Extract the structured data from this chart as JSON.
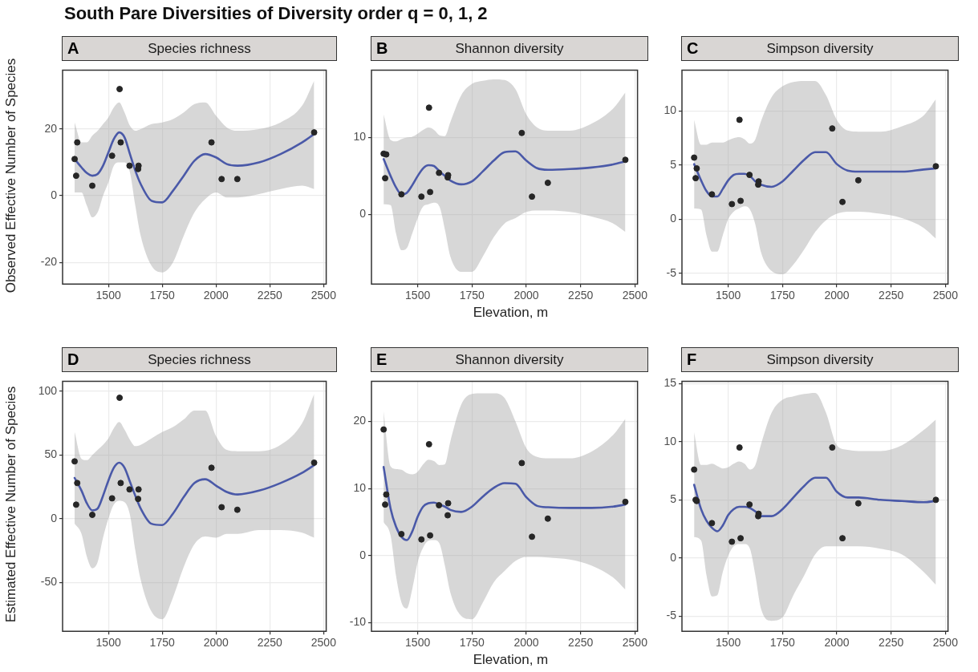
{
  "chart_data": [
    {
      "type": "scatter",
      "title": "Species richness",
      "subtitle": "A",
      "ylabel": "Observed Effective Number of Species",
      "annotations": [
        "South Pare Diversities of Diversity order q = 0, 1, 2"
      ],
      "xlim": [
        1287,
        2512
      ],
      "xticks": [
        1500,
        1750,
        2000,
        2250,
        2500
      ],
      "ylim": [
        -26.5,
        37.7
      ],
      "yticks": [
        -20,
        0,
        20
      ],
      "grid": true,
      "x": [
        1343,
        1350,
        1355,
        1425,
        1517,
        1552,
        1557,
        1598,
        1638,
        1640,
        1979,
        2026,
        2099,
        2456
      ],
      "series": [
        {
          "type": "scatter",
          "marker": "circle",
          "color": "#262626",
          "values": [
            11,
            6,
            16,
            3,
            12,
            32,
            16,
            9,
            8,
            9,
            16,
            5,
            5,
            19
          ]
        },
        {
          "type": "line",
          "marker": "none",
          "color": "#4a59a8",
          "x": [
            1343,
            1375,
            1400,
            1425,
            1450,
            1475,
            1500,
            1525,
            1550,
            1575,
            1600,
            1625,
            1650,
            1700,
            1750,
            1800,
            1850,
            1900,
            1950,
            2000,
            2050,
            2100,
            2200,
            2300,
            2400,
            2456
          ],
          "values": [
            11,
            8.5,
            6.8,
            6,
            6.5,
            9,
            13,
            17,
            19,
            17.5,
            12.5,
            7.5,
            3.5,
            -1.5,
            -2,
            1.5,
            6,
            10.5,
            12.5,
            11.5,
            9.5,
            9,
            10,
            12.5,
            16,
            18.5
          ],
          "upper": [
            22,
            16,
            16,
            18,
            19.5,
            21.5,
            23.5,
            26.5,
            28,
            25,
            21,
            19.5,
            20,
            21.5,
            22,
            23,
            25,
            27.5,
            28,
            24,
            20.5,
            19.5,
            20,
            22,
            27,
            34.5
          ],
          "lower": [
            1,
            1,
            -3,
            -6.5,
            -5,
            0,
            4,
            9,
            10,
            10,
            7,
            -3,
            -12,
            -21,
            -23,
            -20,
            -12,
            -5,
            -1,
            1,
            -0.5,
            -0.5,
            0.5,
            2,
            3,
            2
          ]
        }
      ]
    },
    {
      "type": "scatter",
      "title": "Shannon diversity",
      "subtitle": "B",
      "xlabel": "Elevation, m",
      "xlim": [
        1287,
        2512
      ],
      "xticks": [
        1500,
        1750,
        2000,
        2250,
        2500
      ],
      "ylim": [
        -9.1,
        18.8
      ],
      "yticks": [
        0,
        10
      ],
      "grid": true,
      "x": [
        1343,
        1350,
        1355,
        1425,
        1517,
        1552,
        1557,
        1598,
        1638,
        1640,
        1979,
        2026,
        2099,
        2456
      ],
      "series": [
        {
          "type": "scatter",
          "marker": "circle",
          "color": "#262626",
          "values": [
            7.9,
            4.7,
            7.8,
            2.6,
            2.3,
            13.9,
            2.9,
            5.4,
            4.8,
            5.1,
            10.6,
            2.3,
            4.1,
            7.1
          ]
        },
        {
          "type": "line",
          "marker": "none",
          "color": "#4a59a8",
          "x": [
            1343,
            1375,
            1400,
            1425,
            1450,
            1475,
            1500,
            1525,
            1550,
            1575,
            1600,
            1625,
            1650,
            1700,
            1750,
            1800,
            1850,
            1900,
            1950,
            2000,
            2050,
            2100,
            2200,
            2300,
            2400,
            2456
          ],
          "values": [
            7.2,
            5,
            3.5,
            2.6,
            2.8,
            3.8,
            5,
            6,
            6.4,
            6.3,
            5.6,
            5,
            4.4,
            3.9,
            4.3,
            5.6,
            7,
            8.1,
            8.2,
            7,
            6,
            5.8,
            5.9,
            6.1,
            6.5,
            6.9
          ],
          "upper": [
            13,
            9.7,
            9.5,
            9.8,
            10,
            10.1,
            10.5,
            11,
            11.3,
            11,
            10.3,
            10.2,
            12,
            15.5,
            17,
            17.4,
            17.6,
            17.5,
            16.3,
            13,
            11.3,
            10.9,
            10.9,
            11.8,
            13.8,
            15.9
          ],
          "lower": [
            1.3,
            1.2,
            -2.5,
            -4.7,
            -4.4,
            -2.5,
            -0.5,
            1,
            1.3,
            1.5,
            1,
            -2,
            -5.5,
            -7.5,
            -7.5,
            -5.5,
            -3,
            -1.2,
            -0.5,
            0.3,
            0.5,
            0.5,
            0.3,
            -0.3,
            -1.2,
            -2.3
          ]
        }
      ]
    },
    {
      "type": "scatter",
      "title": "Simpson diversity",
      "subtitle": "C",
      "xlim": [
        1287,
        2512
      ],
      "xticks": [
        1500,
        1750,
        2000,
        2250,
        2500
      ],
      "ylim": [
        -6,
        13.8
      ],
      "yticks": [
        -5,
        0,
        5,
        10
      ],
      "grid": true,
      "x": [
        1343,
        1350,
        1355,
        1425,
        1517,
        1552,
        1557,
        1598,
        1638,
        1640,
        1979,
        2026,
        2099,
        2456
      ],
      "series": [
        {
          "type": "scatter",
          "marker": "circle",
          "color": "#262626",
          "values": [
            5.7,
            3.8,
            4.7,
            2.3,
            1.4,
            9.2,
            1.7,
            4.1,
            3.2,
            3.5,
            8.4,
            1.6,
            3.6,
            4.9
          ]
        },
        {
          "type": "line",
          "marker": "none",
          "color": "#4a59a8",
          "x": [
            1343,
            1375,
            1400,
            1425,
            1450,
            1475,
            1500,
            1525,
            1550,
            1575,
            1600,
            1625,
            1650,
            1700,
            1750,
            1800,
            1850,
            1900,
            1950,
            2000,
            2050,
            2100,
            2200,
            2300,
            2400,
            2456
          ],
          "values": [
            5.1,
            3.6,
            2.6,
            2.1,
            2.1,
            2.8,
            3.6,
            4.1,
            4.2,
            4.2,
            4,
            3.5,
            3.2,
            3,
            3.5,
            4.5,
            5.5,
            6.2,
            6.2,
            5.1,
            4.5,
            4.4,
            4.4,
            4.4,
            4.6,
            4.7
          ],
          "upper": [
            9.2,
            6.9,
            6.9,
            7.1,
            7.1,
            7.1,
            7.3,
            7.5,
            7.6,
            7.4,
            7,
            7.4,
            9,
            11.3,
            12.3,
            12.7,
            12.8,
            12.8,
            11.5,
            9.2,
            8.2,
            8.1,
            8.1,
            8.6,
            9.6,
            11.1
          ],
          "lower": [
            1,
            0.9,
            -1.5,
            -3,
            -3,
            -1.5,
            0,
            0.7,
            1,
            1.2,
            0.9,
            -0.5,
            -3,
            -4.8,
            -5.1,
            -4.2,
            -2.8,
            -1.2,
            -0.1,
            0.5,
            0.7,
            0.7,
            0.5,
            0.1,
            -0.8,
            -1.8
          ]
        }
      ]
    },
    {
      "type": "scatter",
      "title": "Species richness",
      "subtitle": "D",
      "ylabel": "Estimated Effective Number of Species",
      "xlim": [
        1287,
        2512
      ],
      "xticks": [
        1500,
        1750,
        2000,
        2250,
        2500
      ],
      "ylim": [
        -88.5,
        108
      ],
      "yticks": [
        -50,
        0,
        50,
        100
      ],
      "grid": true,
      "x": [
        1343,
        1350,
        1355,
        1425,
        1517,
        1552,
        1557,
        1598,
        1638,
        1640,
        1979,
        2026,
        2099,
        2456
      ],
      "series": [
        {
          "type": "scatter",
          "marker": "circle",
          "color": "#262626",
          "values": [
            45,
            11,
            28,
            3,
            16,
            95,
            28,
            23,
            15.5,
            23,
            40,
            9,
            7,
            44
          ]
        },
        {
          "type": "line",
          "marker": "none",
          "color": "#4a59a8",
          "x": [
            1343,
            1375,
            1400,
            1425,
            1450,
            1475,
            1500,
            1525,
            1550,
            1575,
            1600,
            1625,
            1650,
            1700,
            1750,
            1800,
            1850,
            1900,
            1950,
            2000,
            2050,
            2100,
            2200,
            2300,
            2400,
            2456
          ],
          "values": [
            32,
            22,
            12,
            6.5,
            8,
            18,
            30,
            40,
            44,
            40,
            29,
            18,
            8,
            -4,
            -5,
            4,
            17,
            28,
            31,
            26,
            21,
            19,
            22,
            28,
            36,
            42
          ],
          "upper": [
            68,
            47,
            46,
            50,
            54,
            58,
            63,
            71,
            76,
            70,
            62,
            57,
            58,
            63,
            68,
            72,
            78,
            85,
            85,
            65,
            54,
            53,
            53,
            58,
            75,
            98
          ],
          "lower": [
            -4,
            -12,
            -30,
            -39,
            -34,
            -15,
            0,
            11,
            14,
            13,
            3,
            -25,
            -48,
            -73,
            -79,
            -62,
            -38,
            -20,
            -14,
            -15,
            -12,
            -12,
            -9,
            -9,
            -11,
            -15
          ]
        }
      ]
    },
    {
      "type": "scatter",
      "title": "Shannon diversity",
      "subtitle": "E",
      "xlabel": "Elevation, m",
      "xlim": [
        1287,
        2512
      ],
      "xticks": [
        1500,
        1750,
        2000,
        2250,
        2500
      ],
      "ylim": [
        -11.3,
        26
      ],
      "yticks": [
        -10,
        0,
        10,
        20
      ],
      "grid": true,
      "x": [
        1343,
        1350,
        1355,
        1425,
        1517,
        1552,
        1557,
        1598,
        1638,
        1640,
        1979,
        2026,
        2099,
        2456
      ],
      "series": [
        {
          "type": "scatter",
          "marker": "circle",
          "color": "#262626",
          "values": [
            18.8,
            7.6,
            9.1,
            3.2,
            2.4,
            16.6,
            3,
            7.5,
            6,
            7.8,
            13.8,
            2.8,
            5.5,
            8
          ]
        },
        {
          "type": "line",
          "marker": "none",
          "color": "#4a59a8",
          "x": [
            1343,
            1375,
            1400,
            1425,
            1450,
            1475,
            1500,
            1525,
            1550,
            1575,
            1600,
            1625,
            1650,
            1700,
            1750,
            1800,
            1850,
            1900,
            1950,
            2000,
            2050,
            2100,
            2200,
            2300,
            2400,
            2456
          ],
          "values": [
            13.2,
            7,
            4.3,
            2.8,
            2.3,
            3.6,
            5.8,
            7.3,
            7.8,
            7.9,
            7.6,
            7.3,
            6.8,
            6.5,
            7.3,
            8.8,
            10.1,
            10.8,
            10.7,
            8.7,
            7.4,
            7.2,
            7.1,
            7.1,
            7.3,
            7.6
          ],
          "upper": [
            21.5,
            13.3,
            12.9,
            12.8,
            12.3,
            12.1,
            12.5,
            13.6,
            14.3,
            14.1,
            13.5,
            13.6,
            17,
            22.5,
            24.1,
            24.2,
            24.2,
            23.5,
            20,
            16,
            14.7,
            14.5,
            14.5,
            15.5,
            18,
            20.4
          ],
          "lower": [
            5,
            3,
            -3,
            -7,
            -7.9,
            -5,
            -1,
            1.2,
            2.2,
            2.3,
            1.8,
            -1.5,
            -5.5,
            -9,
            -9.5,
            -7,
            -4,
            -2.3,
            -0.8,
            -0.2,
            -0.2,
            -0.3,
            -0.6,
            -1.5,
            -3.3,
            -5.1
          ]
        }
      ]
    },
    {
      "type": "scatter",
      "title": "Simpson diversity",
      "subtitle": "F",
      "xlim": [
        1287,
        2512
      ],
      "xticks": [
        1500,
        1750,
        2000,
        2250,
        2500
      ],
      "ylim": [
        -6.3,
        15.2
      ],
      "yticks": [
        -5,
        0,
        5,
        10,
        15
      ],
      "grid": true,
      "x": [
        1343,
        1350,
        1355,
        1425,
        1517,
        1552,
        1557,
        1598,
        1638,
        1640,
        1979,
        2026,
        2099,
        2456
      ],
      "series": [
        {
          "type": "scatter",
          "marker": "circle",
          "color": "#262626",
          "values": [
            7.6,
            5,
            4.9,
            3,
            1.4,
            9.5,
            1.7,
            4.6,
            3.6,
            3.8,
            9.5,
            1.7,
            4.7,
            5
          ]
        },
        {
          "type": "line",
          "marker": "none",
          "color": "#4a59a8",
          "x": [
            1343,
            1375,
            1400,
            1425,
            1450,
            1475,
            1500,
            1525,
            1550,
            1575,
            1600,
            1625,
            1650,
            1700,
            1750,
            1800,
            1850,
            1900,
            1950,
            2000,
            2050,
            2100,
            2200,
            2300,
            2400,
            2456
          ],
          "values": [
            6.3,
            4.2,
            3.2,
            2.6,
            2.3,
            2.8,
            3.7,
            4.2,
            4.4,
            4.4,
            4.3,
            4,
            3.6,
            3.6,
            4.2,
            5.2,
            6.2,
            6.9,
            6.9,
            5.7,
            5.2,
            5.2,
            5,
            4.9,
            4.8,
            4.9
          ],
          "upper": [
            10.8,
            8,
            8,
            8.1,
            7.9,
            7.7,
            7.8,
            8.1,
            8.3,
            8.1,
            7.6,
            8,
            9.7,
            12.5,
            13.6,
            13.9,
            14.1,
            14.2,
            12.5,
            9.7,
            9.3,
            9.2,
            9.2,
            9.7,
            11,
            11.9
          ],
          "lower": [
            1.8,
            1.5,
            -1.5,
            -3.3,
            -3.2,
            -1.2,
            0.2,
            1,
            1.2,
            1.2,
            0.8,
            -1.5,
            -4.3,
            -5.4,
            -5.1,
            -3.2,
            -1.5,
            0.3,
            1,
            1,
            1,
            1,
            0.8,
            0.3,
            -1.2,
            -2.3
          ]
        }
      ]
    }
  ]
}
